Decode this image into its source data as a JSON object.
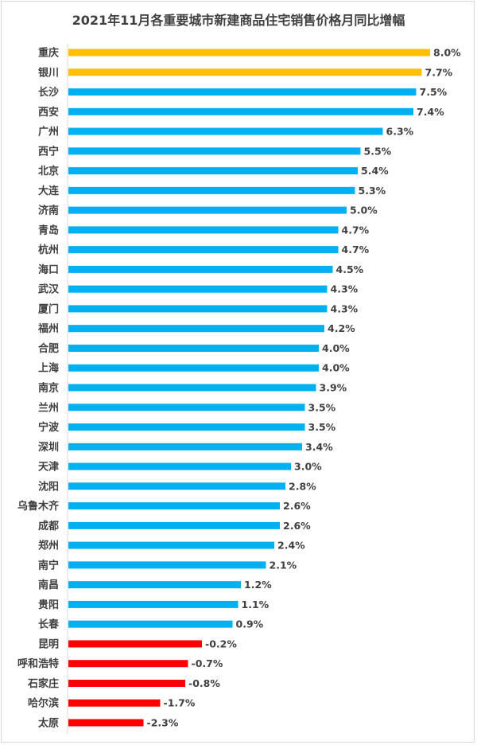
{
  "chart_data": {
    "type": "bar",
    "orientation": "horizontal",
    "title": "2021年11月各重要城市新建商品住宅销售价格月同比增幅",
    "xlabel": "",
    "ylabel": "",
    "xlim": [
      -5,
      8
    ],
    "grid": false,
    "legend": "none",
    "unit": "%",
    "categories": [
      "重庆",
      "银川",
      "长沙",
      "西安",
      "广州",
      "西宁",
      "北京",
      "大连",
      "济南",
      "青岛",
      "杭州",
      "海口",
      "武汉",
      "厦门",
      "福州",
      "合肥",
      "上海",
      "南京",
      "兰州",
      "宁波",
      "深圳",
      "天津",
      "沈阳",
      "乌鲁木齐",
      "成都",
      "郑州",
      "南宁",
      "南昌",
      "贵阳",
      "长春",
      "昆明",
      "呼和浩特",
      "石家庄",
      "哈尔滨",
      "太原"
    ],
    "values": [
      8.0,
      7.7,
      7.5,
      7.4,
      6.3,
      5.5,
      5.4,
      5.3,
      5.0,
      4.7,
      4.7,
      4.5,
      4.3,
      4.3,
      4.2,
      4.0,
      4.0,
      3.9,
      3.5,
      3.5,
      3.4,
      3.0,
      2.8,
      2.6,
      2.6,
      2.4,
      2.1,
      1.2,
      1.1,
      0.9,
      -0.2,
      -0.7,
      -0.8,
      -1.7,
      -2.3
    ],
    "labels": [
      "8.0%",
      "7.7%",
      "7.5%",
      "7.4%",
      "6.3%",
      "5.5%",
      "5.4%",
      "5.3%",
      "5.0%",
      "4.7%",
      "4.7%",
      "4.5%",
      "4.3%",
      "4.3%",
      "4.2%",
      "4.0%",
      "4.0%",
      "3.9%",
      "3.5%",
      "3.5%",
      "3.4%",
      "3.0%",
      "2.8%",
      "2.6%",
      "2.6%",
      "2.4%",
      "2.1%",
      "1.2%",
      "1.1%",
      "0.9%",
      "-0.2%",
      "-0.7%",
      "-0.8%",
      "-1.7%",
      "-2.3%"
    ],
    "colors": {
      "top": "#FFC000",
      "positive": "#00B0F0",
      "negative": "#FF0000"
    },
    "top_count": 2
  }
}
